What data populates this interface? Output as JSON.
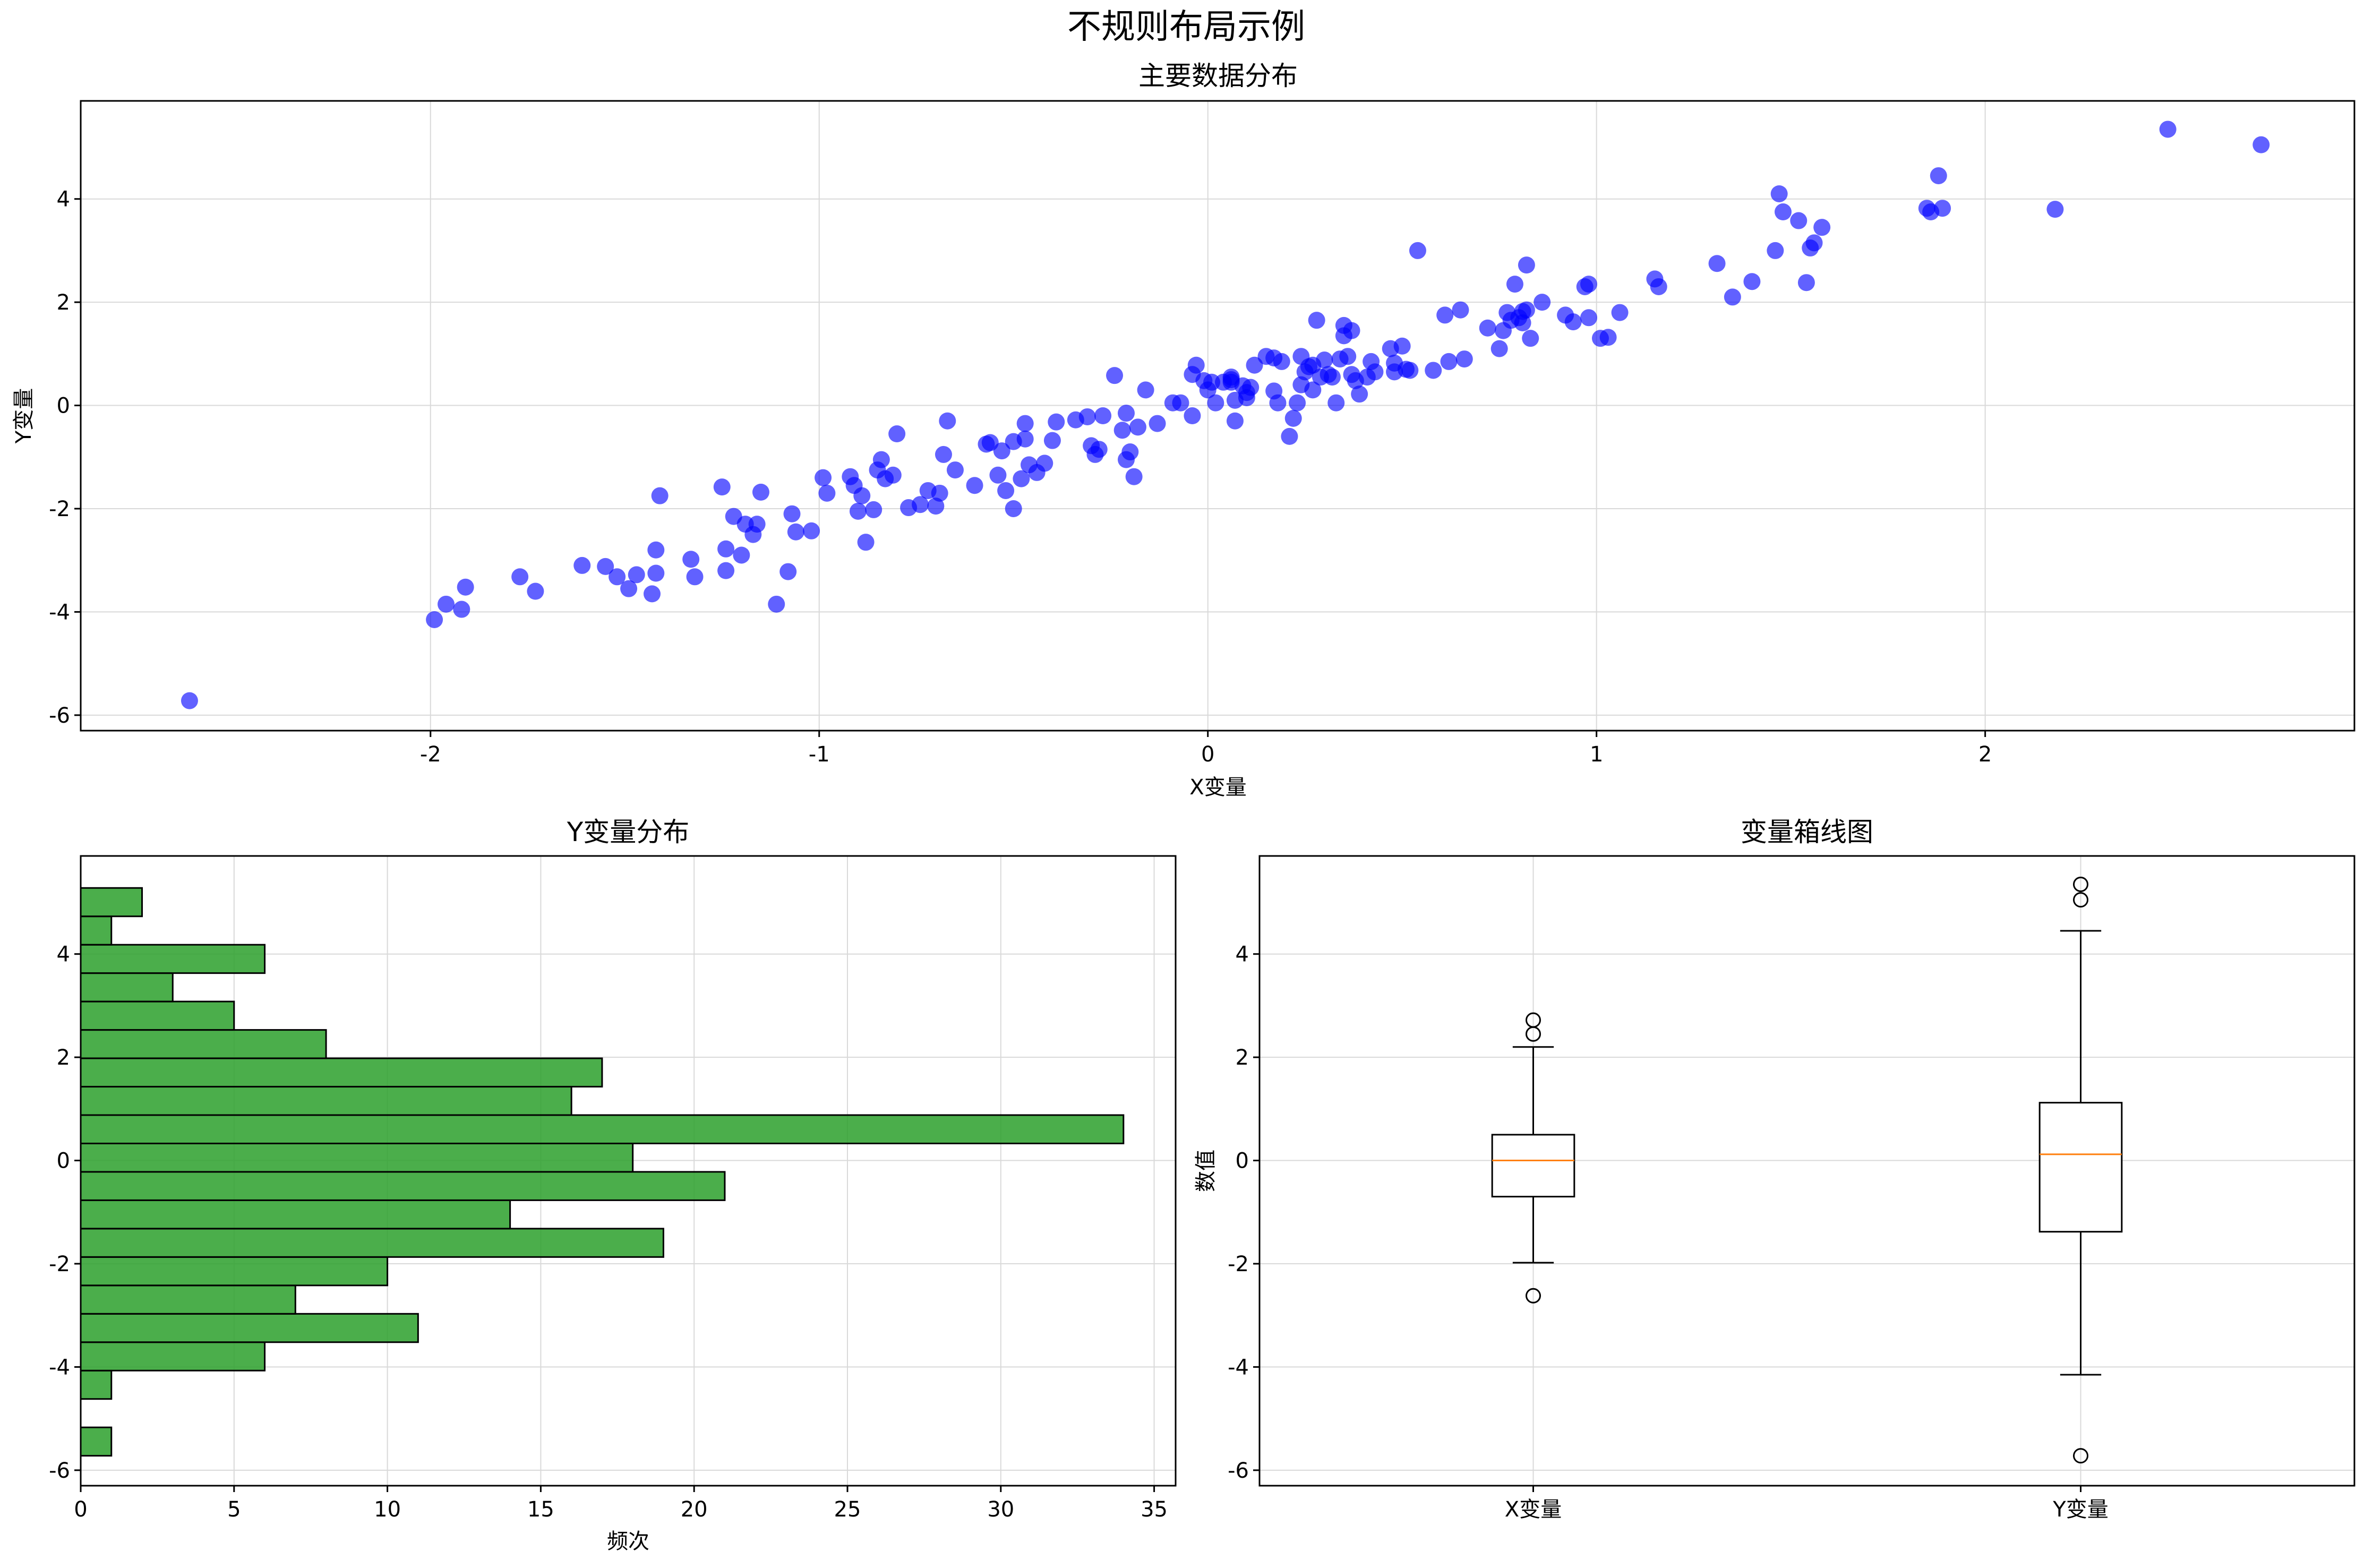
{
  "figure": {
    "suptitle": "不规则布局示例"
  },
  "colors": {
    "scatter": "#0000ff",
    "hist": "#2ca02c",
    "median": "#ff7f0e",
    "grid": "#d9d9d9"
  },
  "chart_data": [
    {
      "type": "scatter",
      "title": "主要数据分布",
      "xlabel": "X变量",
      "ylabel": "Y变量",
      "xlim": [
        -2.9,
        2.95
      ],
      "ylim": [
        -6.3,
        5.9
      ],
      "xticks": [
        "-2",
        "-1",
        "0",
        "1",
        "2"
      ],
      "yticks": [
        "-6",
        "-4",
        "-2",
        "0",
        "2",
        "4"
      ],
      "grid": true,
      "points": [
        [
          -2.62,
          -5.72
        ],
        [
          -1.99,
          -4.15
        ],
        [
          -1.96,
          -3.85
        ],
        [
          -1.92,
          -3.95
        ],
        [
          -1.91,
          -3.52
        ],
        [
          -1.77,
          -3.32
        ],
        [
          -1.73,
          -3.6
        ],
        [
          -1.61,
          -3.1
        ],
        [
          -1.55,
          -3.12
        ],
        [
          -1.52,
          -3.32
        ],
        [
          -1.49,
          -3.55
        ],
        [
          -1.47,
          -3.28
        ],
        [
          -1.43,
          -3.65
        ],
        [
          -1.42,
          -3.25
        ],
        [
          -1.42,
          -2.8
        ],
        [
          -1.41,
          -1.75
        ],
        [
          -1.33,
          -2.98
        ],
        [
          -1.32,
          -3.32
        ],
        [
          -1.25,
          -1.58
        ],
        [
          -1.24,
          -3.2
        ],
        [
          -1.24,
          -2.78
        ],
        [
          -1.22,
          -2.15
        ],
        [
          -1.2,
          -2.9
        ],
        [
          -1.19,
          -2.3
        ],
        [
          -1.17,
          -2.5
        ],
        [
          -1.16,
          -2.3
        ],
        [
          -1.15,
          -1.68
        ],
        [
          -1.11,
          -3.85
        ],
        [
          -1.08,
          -3.22
        ],
        [
          -1.07,
          -2.1
        ],
        [
          -1.06,
          -2.45
        ],
        [
          -1.02,
          -2.43
        ],
        [
          -0.99,
          -1.4
        ],
        [
          -0.98,
          -1.7
        ],
        [
          -0.92,
          -1.38
        ],
        [
          -0.91,
          -1.55
        ],
        [
          -0.9,
          -2.05
        ],
        [
          -0.89,
          -1.75
        ],
        [
          -0.88,
          -2.65
        ],
        [
          -0.86,
          -2.02
        ],
        [
          -0.85,
          -1.25
        ],
        [
          -0.84,
          -1.05
        ],
        [
          -0.83,
          -1.42
        ],
        [
          -0.81,
          -1.35
        ],
        [
          -0.8,
          -0.55
        ],
        [
          -0.77,
          -1.98
        ],
        [
          -0.74,
          -1.92
        ],
        [
          -0.72,
          -1.65
        ],
        [
          -0.7,
          -1.95
        ],
        [
          -0.69,
          -1.7
        ],
        [
          -0.68,
          -0.95
        ],
        [
          -0.67,
          -0.3
        ],
        [
          -0.65,
          -1.25
        ],
        [
          -0.6,
          -1.55
        ],
        [
          -0.57,
          -0.75
        ],
        [
          -0.56,
          -0.72
        ],
        [
          -0.54,
          -1.35
        ],
        [
          -0.53,
          -0.88
        ],
        [
          -0.52,
          -1.65
        ],
        [
          -0.5,
          -2
        ],
        [
          -0.5,
          -0.7
        ],
        [
          -0.48,
          -1.42
        ],
        [
          -0.47,
          -0.35
        ],
        [
          -0.47,
          -0.65
        ],
        [
          -0.46,
          -1.15
        ],
        [
          -0.44,
          -1.3
        ],
        [
          -0.42,
          -1.12
        ],
        [
          -0.4,
          -0.68
        ],
        [
          -0.39,
          -0.32
        ],
        [
          -0.34,
          -0.28
        ],
        [
          -0.31,
          -0.22
        ],
        [
          -0.3,
          -0.78
        ],
        [
          -0.29,
          -0.95
        ],
        [
          -0.28,
          -0.85
        ],
        [
          -0.27,
          -0.2
        ],
        [
          -0.24,
          0.58
        ],
        [
          -0.22,
          -0.48
        ],
        [
          -0.21,
          -0.15
        ],
        [
          -0.21,
          -1.05
        ],
        [
          -0.2,
          -0.9
        ],
        [
          -0.19,
          -1.38
        ],
        [
          -0.18,
          -0.42
        ],
        [
          -0.16,
          0.3
        ],
        [
          -0.13,
          -0.35
        ],
        [
          -0.09,
          0.05
        ],
        [
          -0.07,
          0.05
        ],
        [
          -0.04,
          -0.2
        ],
        [
          -0.04,
          0.6
        ],
        [
          -0.03,
          0.78
        ],
        [
          -0.01,
          0.48
        ],
        [
          0,
          0.3
        ],
        [
          0.01,
          0.45
        ],
        [
          0.02,
          0.05
        ],
        [
          0.04,
          0.45
        ],
        [
          0.06,
          0.45
        ],
        [
          0.06,
          0.55
        ],
        [
          0.06,
          0.5
        ],
        [
          0.07,
          0.1
        ],
        [
          0.07,
          -0.3
        ],
        [
          0.09,
          0.38
        ],
        [
          0.1,
          0.25
        ],
        [
          0.1,
          0.15
        ],
        [
          0.11,
          0.35
        ],
        [
          0.12,
          0.78
        ],
        [
          0.15,
          0.95
        ],
        [
          0.17,
          0.92
        ],
        [
          0.17,
          0.28
        ],
        [
          0.18,
          0.05
        ],
        [
          0.19,
          0.85
        ],
        [
          0.21,
          -0.6
        ],
        [
          0.22,
          -0.25
        ],
        [
          0.23,
          0.05
        ],
        [
          0.24,
          0.4
        ],
        [
          0.24,
          0.95
        ],
        [
          0.25,
          0.65
        ],
        [
          0.26,
          0.75
        ],
        [
          0.27,
          0.78
        ],
        [
          0.27,
          0.3
        ],
        [
          0.28,
          1.65
        ],
        [
          0.29,
          0.55
        ],
        [
          0.3,
          0.88
        ],
        [
          0.31,
          0.6
        ],
        [
          0.32,
          0.55
        ],
        [
          0.33,
          0.05
        ],
        [
          0.34,
          0.9
        ],
        [
          0.35,
          1.55
        ],
        [
          0.35,
          1.35
        ],
        [
          0.36,
          0.95
        ],
        [
          0.37,
          0.6
        ],
        [
          0.37,
          1.45
        ],
        [
          0.38,
          0.48
        ],
        [
          0.39,
          0.22
        ],
        [
          0.41,
          0.55
        ],
        [
          0.42,
          0.85
        ],
        [
          0.43,
          0.65
        ],
        [
          0.47,
          1.1
        ],
        [
          0.48,
          0.65
        ],
        [
          0.48,
          0.82
        ],
        [
          0.5,
          1.15
        ],
        [
          0.51,
          0.7
        ],
        [
          0.52,
          0.68
        ],
        [
          0.54,
          3
        ],
        [
          0.58,
          0.68
        ],
        [
          0.61,
          1.75
        ],
        [
          0.62,
          0.85
        ],
        [
          0.65,
          1.85
        ],
        [
          0.66,
          0.9
        ],
        [
          0.72,
          1.5
        ],
        [
          0.75,
          1.1
        ],
        [
          0.76,
          1.45
        ],
        [
          0.77,
          1.8
        ],
        [
          0.78,
          1.65
        ],
        [
          0.79,
          2.35
        ],
        [
          0.8,
          1.7
        ],
        [
          0.81,
          1.6
        ],
        [
          0.81,
          1.82
        ],
        [
          0.82,
          2.72
        ],
        [
          0.82,
          1.85
        ],
        [
          0.83,
          1.3
        ],
        [
          0.86,
          2
        ],
        [
          0.92,
          1.75
        ],
        [
          0.94,
          1.62
        ],
        [
          0.97,
          2.3
        ],
        [
          0.98,
          2.35
        ],
        [
          0.98,
          1.7
        ],
        [
          1.01,
          1.3
        ],
        [
          1.03,
          1.32
        ],
        [
          1.06,
          1.8
        ],
        [
          1.15,
          2.45
        ],
        [
          1.16,
          2.3
        ],
        [
          1.31,
          2.75
        ],
        [
          1.35,
          2.1
        ],
        [
          1.4,
          2.4
        ],
        [
          1.46,
          3
        ],
        [
          1.47,
          4.1
        ],
        [
          1.48,
          3.75
        ],
        [
          1.52,
          3.58
        ],
        [
          1.54,
          2.38
        ],
        [
          1.55,
          3.05
        ],
        [
          1.56,
          3.15
        ],
        [
          1.58,
          3.45
        ],
        [
          1.85,
          3.82
        ],
        [
          1.86,
          3.75
        ],
        [
          1.88,
          4.45
        ],
        [
          1.89,
          3.82
        ],
        [
          2.18,
          3.8
        ],
        [
          2.47,
          5.35
        ],
        [
          2.71,
          5.05
        ]
      ]
    },
    {
      "type": "bar",
      "orientation": "horizontal",
      "title": "Y变量分布",
      "xlabel": "频次",
      "ylabel": "",
      "xlim": [
        0,
        35.7
      ],
      "ylim": [
        -6.3,
        5.9
      ],
      "xticks": [
        "0",
        "5",
        "10",
        "15",
        "20",
        "25",
        "30",
        "35"
      ],
      "yticks": [
        "-6",
        "-4",
        "-2",
        "0",
        "2",
        "4"
      ],
      "grid": true,
      "bin_edges": [
        -5.72,
        -5.17,
        -4.62,
        -4.07,
        -3.52,
        -2.97,
        -2.42,
        -1.87,
        -1.32,
        -0.77,
        -0.22,
        0.33,
        0.88,
        1.43,
        1.98,
        2.53,
        3.08,
        3.63,
        4.18,
        4.73,
        5.28
      ],
      "counts": [
        1,
        0,
        1,
        6,
        11,
        7,
        10,
        19,
        14,
        21,
        18,
        34,
        16,
        17,
        8,
        5,
        3,
        6,
        1,
        2
      ]
    },
    {
      "type": "box",
      "title": "变量箱线图",
      "xlabel": "",
      "ylabel": "数值",
      "categories": [
        "X变量",
        "Y变量"
      ],
      "ylim": [
        -6.3,
        5.9
      ],
      "yticks": [
        "-6",
        "-4",
        "-2",
        "0",
        "2",
        "4"
      ],
      "grid": true,
      "boxes": [
        {
          "q1": -0.7,
          "median": 0.0,
          "q3": 0.5,
          "whisker_low": -1.98,
          "whisker_high": 2.2,
          "outliers": [
            2.72,
            2.45,
            -2.62
          ]
        },
        {
          "q1": -1.38,
          "median": 0.12,
          "q3": 1.12,
          "whisker_low": -4.15,
          "whisker_high": 4.45,
          "outliers": [
            5.35,
            5.05,
            -5.72
          ]
        }
      ]
    }
  ]
}
